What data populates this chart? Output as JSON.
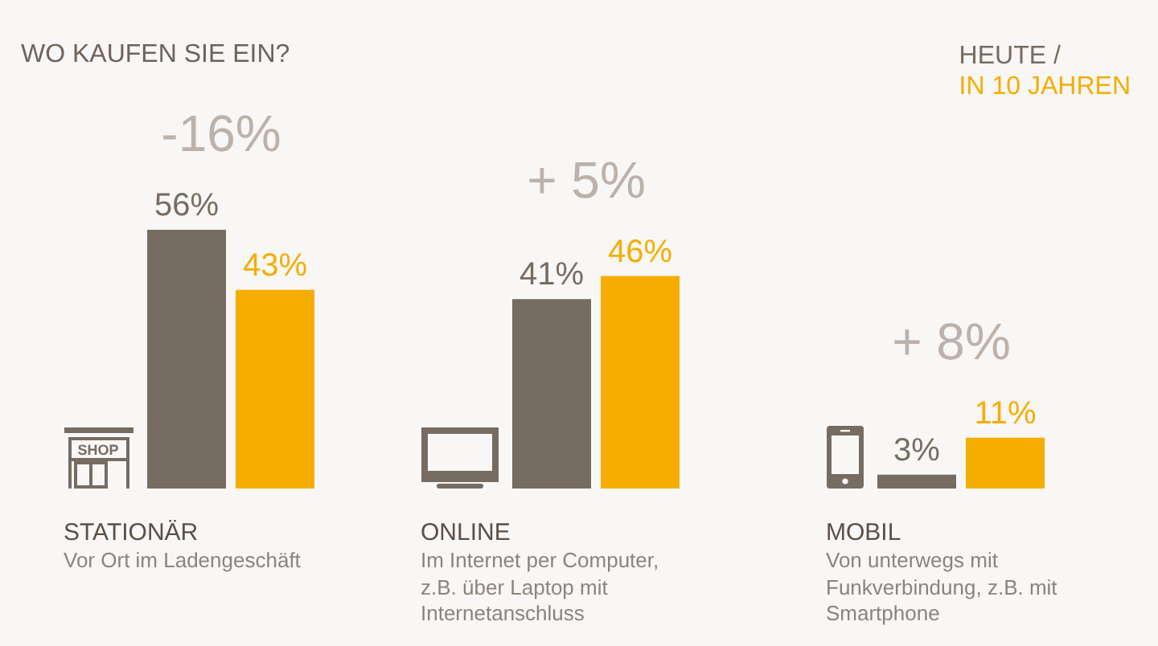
{
  "chart_data": {
    "type": "bar",
    "title": "WO KAUFEN SIE EIN?",
    "categories": [
      "STATIONÄR",
      "ONLINE",
      "MOBIL"
    ],
    "series": [
      {
        "name": "HEUTE /",
        "color": "#776c62",
        "values": [
          56,
          41,
          3
        ],
        "value_labels": [
          "56%",
          "41%",
          "3%"
        ]
      },
      {
        "name": "IN 10 JAHREN",
        "color": "#f5ad00",
        "values": [
          43,
          46,
          11
        ],
        "value_labels": [
          "43%",
          "46%",
          "11%"
        ]
      }
    ],
    "legend": "top right",
    "annotations": [
      "-16%",
      "+ 5%",
      "+ 8%",
      "Vor Ort im Ladengeschäft",
      "Im Internet per Computer, z.B. über Laptop mit Internetanschluss",
      "Von unterwegs mit Funkverbindung, z.B. mit Smartphone",
      "SHOP"
    ]
  }
}
